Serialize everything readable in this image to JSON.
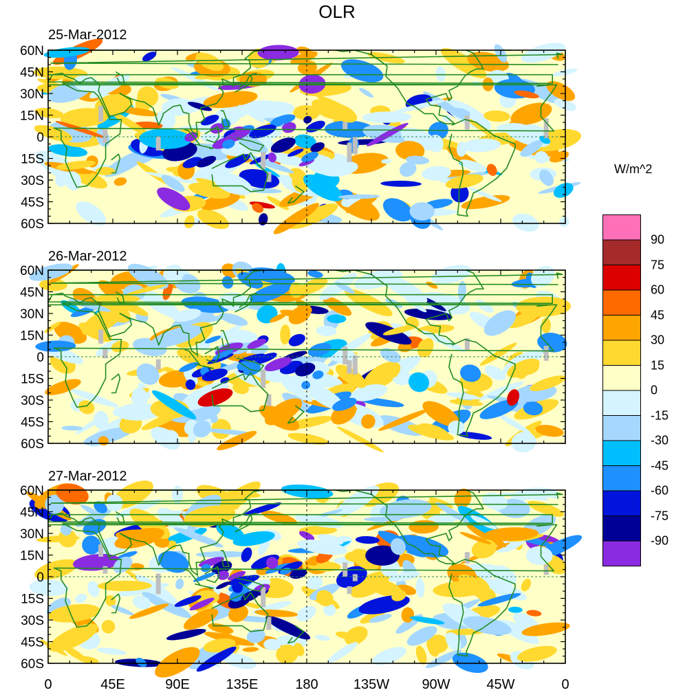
{
  "chart_data": {
    "type": "heatmap",
    "title": "OLR",
    "units_label": "W/m^2",
    "panels": [
      {
        "date": "25-Mar-2012"
      },
      {
        "date": "26-Mar-2012"
      },
      {
        "date": "27-Mar-2012"
      }
    ],
    "x_ticks": [
      "0",
      "45E",
      "90E",
      "135E",
      "180",
      "135W",
      "90W",
      "45W",
      "0"
    ],
    "y_ticks": [
      "60N",
      "45N",
      "30N",
      "15N",
      "0",
      "15S",
      "30S",
      "45S",
      "60S"
    ],
    "x_range_deg": [
      0,
      360
    ],
    "y_range_deg": [
      -60,
      60
    ],
    "colorbar": {
      "labels": [
        "90",
        "75",
        "60",
        "45",
        "30",
        "15",
        "0",
        "-15",
        "-30",
        "-45",
        "-60",
        "-75",
        "-90"
      ],
      "colors": [
        "#ff70b8",
        "#a52a2a",
        "#dc0000",
        "#ff6a00",
        "#ffa500",
        "#ffd92f",
        "#ffffc8",
        "#d4f4ff",
        "#a6d8ff",
        "#00bfff",
        "#1e90ff",
        "#0014dc",
        "#000096",
        "#8a2be2"
      ]
    }
  }
}
